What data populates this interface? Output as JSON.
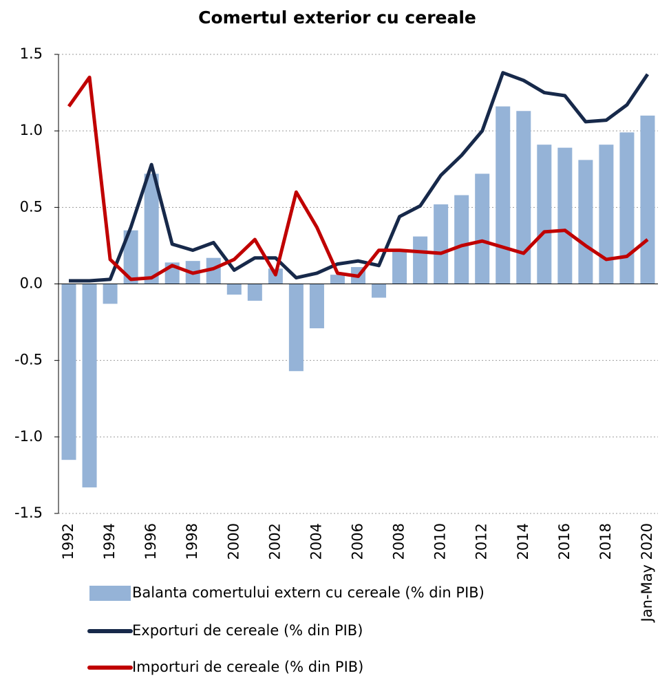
{
  "chart_data": {
    "type": "combo",
    "title": "Comertul exterior cu cereale",
    "categories": [
      "1992",
      null,
      "1994",
      null,
      "1996",
      null,
      "1998",
      null,
      "2000",
      null,
      "2002",
      null,
      "2004",
      null,
      "2006",
      null,
      "2008",
      null,
      "2010",
      null,
      "2012",
      null,
      "2014",
      null,
      "2016",
      null,
      "2018",
      null,
      "Jan-May 2020"
    ],
    "series": [
      {
        "name": "Balanta comertului extern cu cereale (% din PIB)",
        "type": "bar",
        "color": "#95b3d7",
        "values": [
          -1.15,
          -1.33,
          -0.13,
          0.35,
          0.72,
          0.14,
          0.15,
          0.17,
          -0.07,
          -0.11,
          0.1,
          -0.57,
          -0.29,
          0.06,
          0.11,
          -0.09,
          0.22,
          0.31,
          0.52,
          0.58,
          0.72,
          1.16,
          1.13,
          0.91,
          0.89,
          0.81,
          0.91,
          0.99,
          1.1
        ]
      },
      {
        "name": "Exporturi de cereale (% din PIB)",
        "type": "line",
        "color": "#17294a",
        "values": [
          0.02,
          0.02,
          0.03,
          0.37,
          0.78,
          0.26,
          0.22,
          0.27,
          0.09,
          0.17,
          0.17,
          0.04,
          0.07,
          0.13,
          0.15,
          0.12,
          0.44,
          0.51,
          0.71,
          0.84,
          1.0,
          1.38,
          1.33,
          1.25,
          1.23,
          1.06,
          1.07,
          1.17,
          1.37
        ]
      },
      {
        "name": "Importuri de cereale (% din PIB)",
        "type": "line",
        "color": "#c00000",
        "values": [
          1.16,
          1.35,
          0.16,
          0.03,
          0.04,
          0.12,
          0.07,
          0.1,
          0.16,
          0.29,
          0.06,
          0.6,
          0.37,
          0.07,
          0.05,
          0.22,
          0.22,
          0.21,
          0.2,
          0.25,
          0.28,
          0.24,
          0.2,
          0.34,
          0.35,
          0.25,
          0.16,
          0.18,
          0.29
        ]
      }
    ],
    "ylim": [
      -1.5,
      1.5
    ],
    "yticks": [
      -1.5,
      {
        "value": -1,
        "label": "-1.0"
      },
      -0.5,
      {
        "value": 0,
        "label": "0.0"
      },
      0.5,
      {
        "value": 1,
        "label": "1.0"
      },
      1.5
    ],
    "grid": true,
    "legend": "bottom"
  }
}
